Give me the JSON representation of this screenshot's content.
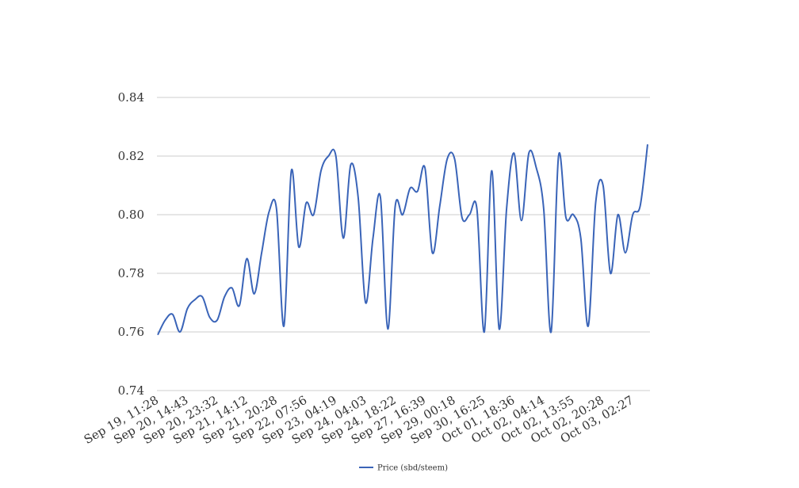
{
  "chart_data": {
    "type": "line",
    "categories": [
      "Sep 19, 11:28",
      null,
      null,
      null,
      "Sep 20, 14:43",
      null,
      null,
      null,
      "Sep 20, 23:32",
      null,
      null,
      null,
      "Sep 21, 14:12",
      null,
      null,
      null,
      "Sep 21, 20:28",
      null,
      null,
      null,
      "Sep 22, 07:56",
      null,
      null,
      null,
      "Sep 23, 04:19",
      null,
      null,
      null,
      "Sep 24, 04:03",
      null,
      null,
      null,
      "Sep 24, 18:22",
      null,
      null,
      null,
      "Sep 27, 16:39",
      null,
      null,
      null,
      "Sep 29, 00:18",
      null,
      null,
      null,
      "Sep 30, 16:25",
      null,
      null,
      null,
      "Oct 01, 18:36",
      null,
      null,
      null,
      "Oct 02, 04:14",
      null,
      null,
      null,
      "Oct 02, 13:55",
      null,
      null,
      null,
      "Oct 02, 20:28",
      null,
      null,
      null,
      "Oct 03, 02:27",
      null,
      null
    ],
    "series": [
      {
        "name": "Price (sbd/steem)",
        "color": "#3a64b8",
        "values": [
          0.759,
          0.764,
          0.766,
          0.76,
          0.768,
          0.771,
          0.772,
          0.765,
          0.764,
          0.772,
          0.775,
          0.769,
          0.785,
          0.773,
          0.787,
          0.801,
          0.802,
          0.762,
          0.815,
          0.789,
          0.804,
          0.8,
          0.815,
          0.82,
          0.82,
          0.792,
          0.817,
          0.806,
          0.77,
          0.792,
          0.806,
          0.761,
          0.803,
          0.8,
          0.809,
          0.808,
          0.816,
          0.787,
          0.803,
          0.819,
          0.819,
          0.799,
          0.8,
          0.802,
          0.76,
          0.815,
          0.761,
          0.802,
          0.821,
          0.798,
          0.821,
          0.816,
          0.802,
          0.76,
          0.82,
          0.799,
          0.8,
          0.792,
          0.762,
          0.804,
          0.81,
          0.78,
          0.8,
          0.787,
          0.8,
          0.803,
          0.824
        ]
      }
    ],
    "ylim": [
      0.74,
      0.84
    ],
    "yticks": [
      0.74,
      0.76,
      0.78,
      {
        "value": 0.8,
        "label": "0.80"
      },
      0.82,
      0.84
    ],
    "grid": true,
    "legend": "bottom"
  }
}
